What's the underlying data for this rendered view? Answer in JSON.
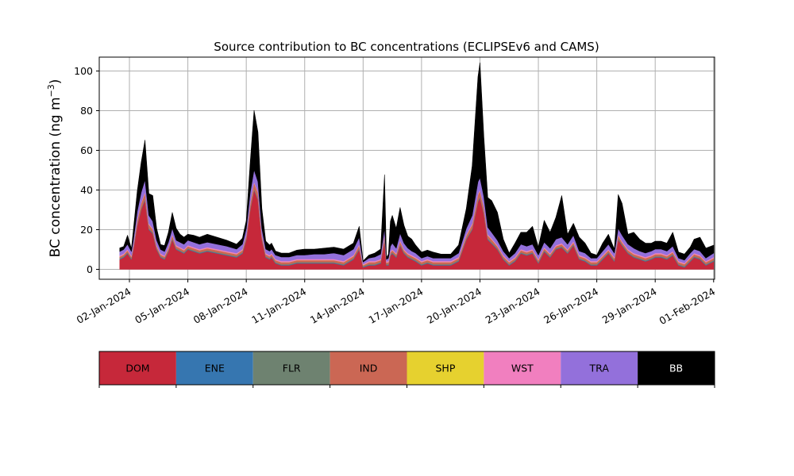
{
  "chart_data": {
    "type": "area",
    "stacked": true,
    "title": "Source contribution to BC concentrations (ECLIPSEv6 and CAMS)",
    "ylabel_text": "BC concentration (ng m",
    "ylabel_exp": "−3",
    "ylabel_close": ")",
    "ylim": [
      -5,
      107
    ],
    "y_ticks": [
      0,
      20,
      40,
      60,
      80,
      100
    ],
    "y_tick_labels": [
      "0",
      "20",
      "40",
      "60",
      "80",
      "100"
    ],
    "xlim_days": [
      0.45,
      32.05
    ],
    "x_tick_days": [
      2,
      5,
      8,
      11,
      14,
      17,
      20,
      23,
      26,
      29,
      32
    ],
    "x_tick_labels": [
      "02-Jan-2024",
      "05-Jan-2024",
      "08-Jan-2024",
      "11-Jan-2024",
      "14-Jan-2024",
      "17-Jan-2024",
      "20-Jan-2024",
      "23-Jan-2024",
      "26-Jan-2024",
      "29-Jan-2024",
      "01-Feb-2024"
    ],
    "grid": true,
    "x": [
      1.5,
      1.7,
      1.9,
      2.1,
      2.2,
      2.4,
      2.6,
      2.8,
      3.0,
      3.2,
      3.4,
      3.6,
      3.8,
      4.0,
      4.2,
      4.4,
      4.6,
      4.8,
      5.0,
      5.3,
      5.6,
      6.0,
      6.5,
      7.0,
      7.5,
      7.8,
      8.0,
      8.2,
      8.4,
      8.6,
      8.8,
      9.0,
      9.2,
      9.3,
      9.5,
      9.8,
      10.2,
      10.6,
      11.0,
      11.5,
      12.0,
      12.5,
      13.0,
      13.5,
      13.8,
      14.0,
      14.3,
      14.6,
      14.9,
      15.1,
      15.2,
      15.3,
      15.4,
      15.5,
      15.7,
      15.9,
      16.1,
      16.3,
      16.5,
      16.7,
      17.0,
      17.3,
      17.6,
      18.0,
      18.5,
      18.9,
      19.3,
      19.6,
      19.9,
      20.0,
      20.2,
      20.4,
      20.6,
      20.9,
      21.2,
      21.5,
      21.8,
      22.1,
      22.4,
      22.7,
      23.0,
      23.3,
      23.6,
      23.9,
      24.2,
      24.5,
      24.8,
      25.1,
      25.4,
      25.7,
      26.0,
      26.3,
      26.6,
      26.9,
      27.1,
      27.3,
      27.6,
      27.9,
      28.2,
      28.5,
      28.8,
      29.0,
      29.3,
      29.6,
      29.9,
      30.2,
      30.5,
      30.8,
      31.0,
      31.3,
      31.6,
      32.0
    ],
    "series": [
      {
        "name": "DOM",
        "color": "#c6283a",
        "values": [
          5,
          6,
          8,
          5,
          10,
          22,
          30,
          35,
          20,
          18,
          10,
          6,
          5,
          9,
          15,
          10,
          9,
          8,
          10,
          9,
          8,
          9,
          8,
          7,
          6,
          8,
          15,
          30,
          40,
          35,
          15,
          6,
          5,
          6,
          3,
          2,
          2,
          3,
          3,
          3,
          3,
          3,
          2,
          5,
          10,
          1,
          2,
          2,
          3,
          15,
          2,
          2,
          7,
          8,
          6,
          12,
          8,
          6,
          5,
          4,
          2,
          3,
          2,
          2,
          2,
          4,
          15,
          20,
          34,
          36,
          28,
          15,
          13,
          10,
          5,
          2,
          4,
          8,
          7,
          8,
          3,
          9,
          6,
          10,
          11,
          8,
          12,
          5,
          4,
          2,
          2,
          5,
          8,
          4,
          15,
          12,
          8,
          6,
          5,
          4,
          5,
          6,
          6,
          5,
          7,
          2,
          1,
          4,
          6,
          5,
          2,
          4
        ]
      },
      {
        "name": "ENE",
        "color": "#3676b0",
        "values": [
          0.3,
          0.3,
          0.3,
          0.3,
          0.3,
          0.3,
          0.3,
          0.3,
          0.3,
          0.3,
          0.3,
          0.3,
          0.3,
          0.3,
          0.3,
          0.3,
          0.3,
          0.3,
          0.3,
          0.3,
          0.3,
          0.3,
          0.3,
          0.3,
          0.3,
          0.3,
          0.3,
          0.3,
          0.3,
          0.3,
          0.3,
          0.3,
          0.3,
          0.3,
          0.3,
          0.3,
          0.3,
          0.3,
          0.3,
          0.3,
          0.3,
          0.3,
          0.3,
          0.3,
          0.3,
          0.3,
          0.3,
          0.3,
          0.3,
          0.3,
          0.3,
          0.3,
          0.3,
          0.3,
          0.3,
          0.3,
          0.3,
          0.3,
          0.3,
          0.3,
          0.3,
          0.3,
          0.3,
          0.3,
          0.3,
          0.3,
          0.3,
          0.3,
          0.3,
          0.3,
          0.3,
          0.3,
          0.3,
          0.3,
          0.3,
          0.3,
          0.3,
          0.3,
          0.3,
          0.3,
          0.3,
          0.3,
          0.3,
          0.3,
          0.3,
          0.3,
          0.3,
          0.3,
          0.3,
          0.3,
          0.3,
          0.3,
          0.3,
          0.3,
          0.3,
          0.3,
          0.3,
          0.3,
          0.3,
          0.3,
          0.3,
          0.3,
          0.3,
          0.3,
          0.3,
          0.3,
          0.3,
          0.3,
          0.3,
          0.3,
          0.3,
          0.3
        ]
      },
      {
        "name": "FLR",
        "color": "#6e8270",
        "values": [
          0.3,
          0.3,
          0.3,
          0.3,
          0.3,
          0.3,
          0.3,
          0.3,
          0.3,
          0.3,
          0.3,
          0.3,
          0.3,
          0.3,
          0.3,
          0.3,
          0.3,
          0.3,
          0.3,
          0.3,
          0.3,
          0.3,
          0.3,
          0.3,
          0.3,
          0.3,
          0.3,
          0.3,
          0.3,
          0.3,
          0.3,
          0.3,
          0.3,
          0.3,
          0.3,
          0.3,
          0.3,
          0.3,
          0.3,
          0.3,
          0.3,
          0.3,
          0.3,
          0.3,
          0.3,
          0.3,
          0.3,
          0.3,
          0.3,
          0.3,
          0.3,
          0.3,
          0.3,
          0.3,
          0.3,
          0.3,
          0.3,
          0.3,
          0.3,
          0.3,
          0.3,
          0.3,
          0.3,
          0.3,
          0.3,
          0.3,
          0.3,
          0.3,
          0.3,
          0.3,
          0.3,
          0.3,
          0.3,
          0.3,
          0.3,
          0.3,
          0.3,
          0.3,
          0.3,
          0.3,
          0.3,
          0.3,
          0.3,
          0.3,
          0.3,
          0.3,
          0.3,
          0.3,
          0.3,
          0.3,
          0.3,
          0.3,
          0.3,
          0.3,
          0.3,
          0.3,
          0.3,
          0.3,
          0.3,
          0.3,
          0.3,
          0.3,
          0.3,
          0.3,
          0.3,
          0.3,
          0.3,
          0.3,
          0.3,
          0.3,
          0.3,
          0.3
        ]
      },
      {
        "name": "IND",
        "color": "#cb6754",
        "values": [
          0.8,
          0.8,
          1,
          0.8,
          1,
          2,
          2.5,
          3,
          2,
          1.5,
          1,
          0.8,
          0.8,
          1,
          1.5,
          1,
          1,
          1,
          1,
          1,
          1,
          1,
          1,
          1,
          1,
          1,
          1.5,
          2.5,
          3,
          3,
          1.5,
          1,
          1,
          1,
          1,
          1,
          1,
          1,
          1,
          1,
          1,
          1,
          1,
          1,
          1.5,
          0.5,
          1,
          1,
          1,
          1.5,
          0.8,
          1,
          1,
          1,
          1,
          1.5,
          1,
          1,
          1,
          1,
          1,
          1,
          1,
          1,
          1,
          1,
          1.5,
          2,
          3,
          3,
          2.5,
          1.5,
          1.5,
          1,
          1,
          1,
          1,
          1,
          1,
          1,
          1,
          1,
          1,
          1,
          1,
          1,
          1,
          1,
          1,
          1,
          1,
          1,
          1,
          1,
          1.5,
          1,
          1,
          1,
          1,
          1,
          1,
          1,
          1,
          1,
          1,
          1,
          1,
          1,
          1,
          1,
          1,
          1
        ]
      },
      {
        "name": "SHP",
        "color": "#e6d12f",
        "values": [
          0.1,
          0.1,
          0.1,
          0.1,
          0.1,
          0.1,
          0.1,
          0.1,
          0.1,
          0.1,
          0.1,
          0.1,
          0.1,
          0.1,
          0.1,
          0.1,
          0.1,
          0.1,
          0.1,
          0.1,
          0.1,
          0.1,
          0.1,
          0.1,
          0.1,
          0.1,
          0.1,
          0.1,
          0.1,
          0.1,
          0.1,
          0.1,
          0.1,
          0.1,
          0.1,
          0.1,
          0.1,
          0.1,
          0.1,
          0.1,
          0.1,
          0.1,
          0.1,
          0.1,
          0.1,
          0.1,
          0.1,
          0.1,
          0.1,
          0.1,
          0.1,
          0.1,
          0.1,
          0.1,
          0.1,
          0.1,
          0.1,
          0.1,
          0.1,
          0.1,
          0.1,
          0.1,
          0.1,
          0.1,
          0.1,
          0.1,
          0.1,
          0.1,
          0.1,
          0.1,
          0.1,
          0.1,
          0.1,
          0.1,
          0.1,
          0.1,
          0.1,
          0.1,
          0.1,
          0.1,
          0.1,
          0.1,
          0.1,
          0.1,
          0.1,
          0.1,
          0.1,
          0.1,
          0.1,
          0.1,
          0.1,
          0.1,
          0.1,
          0.1,
          0.1,
          0.1,
          0.1,
          0.1,
          0.1,
          0.1,
          0.1,
          0.1,
          0.1,
          0.1,
          0.1,
          0.1,
          0.1,
          0.1,
          0.1,
          0.1,
          0.1,
          0.1
        ]
      },
      {
        "name": "WST",
        "color": "#f17fbf",
        "values": [
          0.5,
          0.5,
          0.5,
          0.5,
          0.5,
          0.5,
          0.5,
          0.5,
          0.5,
          0.5,
          0.5,
          0.5,
          0.5,
          0.5,
          0.5,
          0.5,
          0.5,
          0.5,
          0.5,
          0.5,
          0.5,
          0.5,
          0.5,
          0.5,
          0.5,
          0.5,
          0.5,
          0.5,
          0.5,
          0.5,
          0.5,
          0.5,
          0.5,
          0.5,
          0.5,
          0.5,
          0.5,
          0.5,
          0.5,
          0.5,
          0.5,
          0.5,
          0.5,
          0.5,
          0.5,
          0.5,
          0.5,
          0.5,
          0.5,
          0.5,
          0.5,
          0.5,
          0.5,
          0.5,
          0.5,
          0.5,
          0.5,
          0.5,
          0.5,
          0.5,
          0.5,
          0.5,
          0.5,
          0.5,
          0.5,
          0.5,
          0.5,
          0.5,
          0.5,
          0.5,
          0.5,
          0.5,
          0.5,
          0.5,
          0.5,
          0.5,
          0.5,
          0.5,
          0.5,
          0.5,
          0.5,
          0.5,
          0.5,
          0.5,
          0.5,
          0.5,
          0.5,
          0.5,
          0.5,
          0.5,
          0.5,
          0.5,
          0.5,
          0.5,
          0.5,
          0.5,
          0.5,
          0.5,
          0.5,
          0.5,
          0.5,
          0.5,
          0.5,
          0.5,
          0.5,
          0.5,
          0.5,
          0.5,
          0.5,
          0.5,
          0.5,
          0.5
        ]
      },
      {
        "name": "TRA",
        "color": "#9370db",
        "values": [
          2,
          2,
          2.5,
          2,
          2.5,
          4,
          5,
          6,
          4,
          3.5,
          2.5,
          2,
          2,
          2.5,
          3,
          2.5,
          2.5,
          2.5,
          2.5,
          2.5,
          2.5,
          2.5,
          2.5,
          2.5,
          2,
          2.5,
          3,
          5,
          6,
          5,
          3,
          2,
          2,
          2,
          2,
          2,
          2,
          2,
          2,
          2.5,
          2.5,
          3,
          3,
          3,
          3.5,
          1,
          1.5,
          2,
          2.5,
          3,
          1,
          1.5,
          2.5,
          3,
          2.5,
          3.5,
          3,
          2.5,
          2,
          2,
          1.5,
          1.5,
          1.5,
          1.5,
          1.5,
          2,
          3,
          4,
          6,
          6,
          5,
          3.5,
          3,
          2.5,
          2,
          1.5,
          2,
          2.5,
          2.5,
          2.5,
          2,
          2.5,
          2.5,
          3,
          3,
          2.5,
          3,
          2,
          2,
          1.5,
          1.5,
          2,
          2.5,
          2,
          3,
          3,
          2.5,
          2.5,
          2,
          2,
          2,
          2,
          2,
          2,
          2.5,
          1.5,
          1.5,
          2,
          2,
          2,
          1.5,
          2
        ]
      },
      {
        "name": "BB",
        "color": "#000000",
        "values": [
          1.8,
          1.5,
          4.5,
          1.5,
          5,
          10,
          15,
          20,
          11,
          13,
          6,
          2.5,
          3,
          5,
          8,
          6,
          4,
          3.5,
          3,
          3.5,
          3.5,
          4,
          3.5,
          3,
          2.5,
          3,
          4,
          15,
          30,
          25,
          10,
          4,
          3,
          3,
          2,
          2,
          2,
          2.5,
          3,
          2.5,
          3,
          3,
          3,
          3,
          5.5,
          0.5,
          1.5,
          2,
          2.5,
          27,
          1,
          2,
          12.5,
          14,
          10,
          13,
          9,
          6,
          6,
          4,
          3,
          3,
          3,
          2,
          2,
          4,
          10,
          25,
          53,
          58,
          30,
          15,
          16,
          14,
          6,
          2.5,
          5,
          6,
          7,
          9,
          4,
          11,
          8,
          11,
          21,
          5,
          6,
          7,
          5,
          2.5,
          1.5,
          4,
          5,
          2,
          17,
          16,
          5,
          8,
          6,
          5,
          4,
          4,
          4,
          4,
          7,
          3,
          3,
          3,
          5,
          7,
          5,
          4
        ]
      }
    ]
  }
}
